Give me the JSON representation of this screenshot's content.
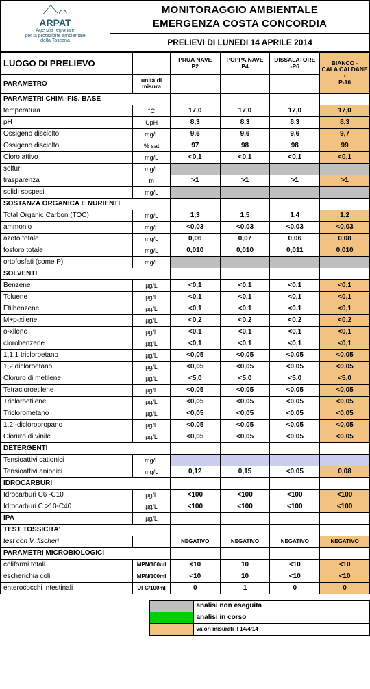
{
  "header": {
    "title": "MONITORAGGIO AMBIENTALE\nEMERGENZA COSTA CONCORDIA",
    "subtitle": "PRELIEVI DI LUNEDI 14 APRILE  2014",
    "brand": "ARPAT",
    "brandSub": "Agenzia regionale\nper la protezione ambientale\ndella Toscana"
  },
  "colHeaders": {
    "loc": "LUOGO DI PRELIEVO",
    "param": "PARAMETRO",
    "unit": "unità di misura",
    "c1": "PRUA NAVE - P2",
    "c2": "POPPA NAVE - P4",
    "c3": "DISSALATORE -P6",
    "c4": "BIANCO - CALA CALDANE - P-10"
  },
  "sections": [
    {
      "label": "PARAMETRI CHIM.-FIS. BASE",
      "rows": [
        {
          "p": "temperatura",
          "u": "°C",
          "v": [
            "17,0",
            "17,0",
            "17,0",
            "17,0"
          ]
        },
        {
          "p": "pH",
          "u": "UpH",
          "v": [
            "8,3",
            "8,3",
            "8,3",
            "8,3"
          ]
        },
        {
          "p": "Ossigeno disciolto",
          "u": "mg/L",
          "v": [
            "9,6",
            "9,6",
            "9,6",
            "9,7"
          ]
        },
        {
          "p": "Ossigeno disciolto",
          "u": "% sat",
          "v": [
            "97",
            "98",
            "98",
            "99"
          ]
        },
        {
          "p": "Cloro attivo",
          "u": "mg/L",
          "v": [
            "<0,1",
            "<0,1",
            "<0,1",
            "<0,1"
          ]
        },
        {
          "p": "solfuri",
          "u": "mg/L",
          "v": [
            "",
            "",
            "",
            ""
          ],
          "gray": [
            0,
            1,
            2,
            3
          ]
        },
        {
          "p": "trasparenza",
          "u": "m",
          "v": [
            ">1",
            ">1",
            ">1",
            ">1"
          ]
        },
        {
          "p": "solidi sospesi",
          "u": "mg/L",
          "v": [
            "",
            "",
            "",
            ""
          ],
          "gray": [
            0,
            1,
            2,
            3
          ]
        }
      ]
    },
    {
      "label": "SOSTANZA ORGANICA E NURIENTI",
      "rows": [
        {
          "p": "Total Organic Carbon (TOC)",
          "u": "mg/L",
          "v": [
            "1,3",
            "1,5",
            "1,4",
            "1,2"
          ]
        },
        {
          "p": "ammonio",
          "u": "mg/L",
          "v": [
            "<0,03",
            "<0,03",
            "<0,03",
            "<0,03"
          ]
        },
        {
          "p": "azoto totale",
          "u": "mg/L",
          "v": [
            "0,06",
            "0,07",
            "0,06",
            "0,08"
          ]
        },
        {
          "p": "fosforo totale",
          "u": "mg/L",
          "v": [
            "0,010",
            "0,010",
            "0,011",
            "0,010"
          ]
        },
        {
          "p": "ortofosfati (come P)",
          "u": "mg/L",
          "v": [
            "",
            "",
            "",
            ""
          ],
          "gray": [
            0,
            1,
            2,
            3
          ]
        }
      ]
    },
    {
      "label": "SOLVENTI",
      "rows": [
        {
          "p": "Benzene",
          "u": "µg/L",
          "v": [
            "<0,1",
            "<0,1",
            "<0,1",
            "<0,1"
          ]
        },
        {
          "p": "Toluene",
          "u": "µg/L",
          "v": [
            "<0,1",
            "<0,1",
            "<0,1",
            "<0,1"
          ]
        },
        {
          "p": "Etilbenzene",
          "u": "µg/L",
          "v": [
            "<0,1",
            "<0,1",
            "<0,1",
            "<0,1"
          ]
        },
        {
          "p": "M+p-xilene",
          "u": "µg/L",
          "v": [
            "<0,2",
            "<0,2",
            "<0,2",
            "<0,2"
          ]
        },
        {
          "p": "o-xilene",
          "u": "µg/L",
          "v": [
            "<0,1",
            "<0,1",
            "<0,1",
            "<0,1"
          ]
        },
        {
          "p": "clorobenzene",
          "u": "µg/L",
          "v": [
            "<0,1",
            "<0,1",
            "<0,1",
            "<0,1"
          ]
        },
        {
          "p": "1,1,1 tricloroetano",
          "u": "µg/L",
          "v": [
            "<0,05",
            "<0,05",
            "<0,05",
            "<0,05"
          ]
        },
        {
          "p": "1,2 dicloroetano",
          "u": "µg/L",
          "v": [
            "<0,05",
            "<0,05",
            "<0,05",
            "<0,05"
          ]
        },
        {
          "p": "Cloruro di metilene",
          "u": "µg/L",
          "v": [
            "<5,0",
            "<5,0",
            "<5,0",
            "<5,0"
          ]
        },
        {
          "p": "Tetracloroetilene",
          "u": "µg/L",
          "v": [
            "<0,05",
            "<0,05",
            "<0,05",
            "<0,05"
          ]
        },
        {
          "p": "Tricloroetilene",
          "u": "µg/L",
          "v": [
            "<0,05",
            "<0,05",
            "<0,05",
            "<0,05"
          ]
        },
        {
          "p": "Triclorometano",
          "u": "µg/L",
          "v": [
            "<0,05",
            "<0,05",
            "<0,05",
            "<0,05"
          ]
        },
        {
          "p": "1,2 -dicloropropano",
          "u": "µg/L",
          "v": [
            "<0,05",
            "<0,05",
            "<0,05",
            "<0,05"
          ]
        },
        {
          "p": "Cloruro di vinile",
          "u": "µg/L",
          "v": [
            "<0,05",
            "<0,05",
            "<0,05",
            "<0,05"
          ]
        }
      ]
    },
    {
      "label": "DETERGENTI",
      "rows": [
        {
          "p": "Tensioattivi cationici",
          "u": "mg/L",
          "v": [
            "",
            "",
            "",
            ""
          ],
          "lilac": [
            0,
            1,
            2,
            3
          ]
        },
        {
          "p": "Tensioattivi anionici",
          "u": "mg/L",
          "v": [
            "0,12",
            "0,15",
            "<0,05",
            "0,08"
          ]
        }
      ]
    },
    {
      "label": "IDROCARBURI",
      "rows": [
        {
          "p": "Idrocarburi C6 -C10",
          "u": "µg/L",
          "v": [
            "<100",
            "<100",
            "<100",
            "<100"
          ]
        },
        {
          "p": "Idrocarburi  C >10-C40",
          "u": "µg/L",
          "v": [
            "<100",
            "<100",
            "<100",
            "<100"
          ]
        }
      ]
    },
    {
      "label": "IPA",
      "unit": "µg/L",
      "rows": []
    },
    {
      "label": "TEST TOSSICITA'",
      "rows": [
        {
          "p": "test con V. fischeri",
          "italic": true,
          "u": "",
          "v": [
            "NEGATIVO",
            "NEGATIVO",
            "NEGATIVO",
            "NEGATIVO"
          ],
          "small": true
        }
      ]
    },
    {
      "label": "PARAMETRI MICROBIOLOGICI",
      "rows": [
        {
          "p": "coliformi totali",
          "u": "MPN/100ml",
          "usmall": true,
          "v": [
            "<10",
            "10",
            "<10",
            "<10"
          ]
        },
        {
          "p": "escherichia coli",
          "u": "MPN/100ml",
          "usmall": true,
          "v": [
            "<10",
            "10",
            "<10",
            "<10"
          ]
        },
        {
          "p": "enterococchi intestinali",
          "u": "UFC/100ml",
          "usmall": true,
          "v": [
            "0",
            "1",
            "0",
            "0"
          ]
        }
      ]
    }
  ],
  "legend": [
    {
      "c": "gray",
      "t": "analisi non eseguita"
    },
    {
      "c": "green",
      "t": "analisi in corso"
    },
    {
      "c": "peach",
      "t": "valori misurati il 14/4/14",
      "small": true
    }
  ],
  "colors": {
    "gray": "#bfbfbf",
    "lilac": "#ccccee",
    "peach": "#f2c280",
    "green": "#00d000",
    "white": "#ffffff",
    "black": "#000000"
  }
}
